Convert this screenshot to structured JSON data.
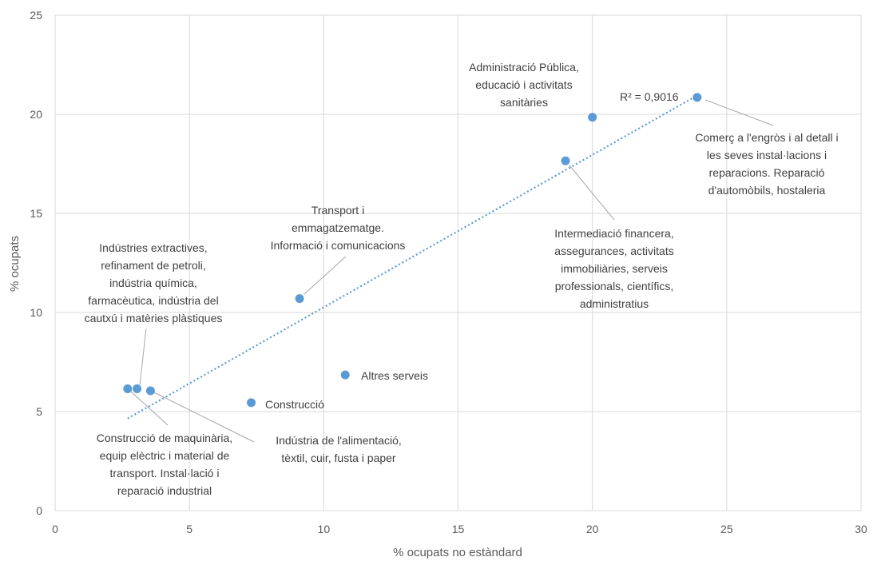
{
  "chart_data": {
    "type": "scatter",
    "xlabel": "% ocupats no estàndard",
    "ylabel": "% ocupats",
    "xlim": [
      0,
      30
    ],
    "ylim": [
      0,
      25
    ],
    "x_ticks": [
      "0",
      "5",
      "10",
      "15",
      "20",
      "25",
      "30"
    ],
    "y_ticks": [
      "0",
      "5",
      "10",
      "15",
      "20",
      "25"
    ],
    "grid": true,
    "colors": {
      "points": "#5b9bd5",
      "trendline": "#5b9bd5",
      "grid": "#d9d9d9",
      "text": "#404040"
    },
    "points": [
      {
        "id": "p0",
        "x": 2.7,
        "y": 6.15,
        "label": [
          "Construcció de maquinària,",
          "equip elèctric i material de",
          "transport. Instal·lació i",
          "reparació industrial"
        ]
      },
      {
        "id": "p1",
        "x": 3.05,
        "y": 6.15,
        "label": [
          "Indústries extractives,",
          "refinament de petroli,",
          "indústria química,",
          "farmacèutica, indústria del",
          "cautxú i matèries plàstiques"
        ]
      },
      {
        "id": "p2",
        "x": 3.55,
        "y": 6.05,
        "label": [
          "Indústria de l'alimentació,",
          "tèxtil, cuir, fusta i paper"
        ]
      },
      {
        "id": "p3",
        "x": 7.3,
        "y": 5.45,
        "label": [
          "Construcció"
        ]
      },
      {
        "id": "p4",
        "x": 9.1,
        "y": 10.7,
        "label": [
          "Transport i",
          "emmagatzematge.",
          "Informació i comunicacions"
        ]
      },
      {
        "id": "p5",
        "x": 10.8,
        "y": 6.85,
        "label": [
          "Altres serveis"
        ]
      },
      {
        "id": "p6",
        "x": 19.0,
        "y": 17.65,
        "label": [
          "Intermediació financera,",
          "assegurances, activitats",
          "immobiliàries, serveis",
          "professionals, científics,",
          "administratius"
        ]
      },
      {
        "id": "p7",
        "x": 20.0,
        "y": 19.85,
        "label": [
          "Administració Pública,",
          "educació i activitats",
          "sanitàries"
        ]
      },
      {
        "id": "p8",
        "x": 23.9,
        "y": 20.85,
        "label": [
          "Comerç a l'engròs i al detall i",
          "les seves instal·lacions i",
          "reparacions. Reparació",
          "d'automòbils, hostaleria"
        ]
      }
    ],
    "trendline": {
      "type": "linear",
      "x": [
        2.7,
        23.9
      ],
      "y": [
        4.65,
        20.95
      ],
      "r2_label": "R² = 0,9016"
    }
  }
}
